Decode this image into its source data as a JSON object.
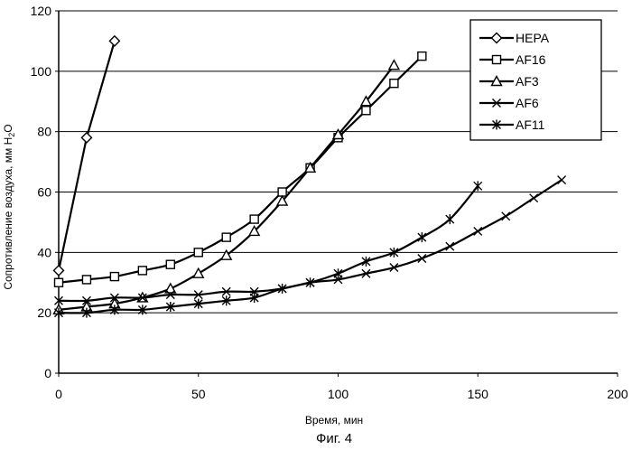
{
  "chart_data": {
    "type": "line",
    "xlabel": "Время, мин",
    "ylabel": "Сопротивление воздуха, мм H",
    "ylabel_sub": "2",
    "ylabel_suffix": "O",
    "xlim": [
      0,
      200
    ],
    "ylim": [
      0,
      120
    ],
    "xticks": [
      0,
      50,
      100,
      150,
      200
    ],
    "yticks": [
      0,
      20,
      40,
      60,
      80,
      100,
      120
    ],
    "grid": "horizontal",
    "legend_position": "top-right",
    "series": [
      {
        "name": "HEPA",
        "marker": "diamond",
        "x": [
          0,
          10,
          20
        ],
        "y": [
          34,
          78,
          110
        ]
      },
      {
        "name": "AF16",
        "marker": "square",
        "x": [
          0,
          10,
          20,
          30,
          40,
          50,
          60,
          70,
          80,
          90,
          100,
          110,
          120,
          130
        ],
        "y": [
          30,
          31,
          32,
          34,
          36,
          40,
          45,
          51,
          60,
          68,
          78,
          87,
          96,
          105
        ]
      },
      {
        "name": "AF3",
        "marker": "triangle",
        "x": [
          0,
          10,
          20,
          30,
          40,
          50,
          60,
          70,
          80,
          90,
          100,
          110,
          120
        ],
        "y": [
          21,
          22,
          23,
          25,
          28,
          33,
          39,
          47,
          57,
          68,
          79,
          90,
          102
        ]
      },
      {
        "name": "AF6",
        "marker": "x",
        "x": [
          0,
          10,
          20,
          30,
          40,
          50,
          60,
          70,
          80,
          90,
          100,
          110,
          120,
          130,
          140,
          150,
          160,
          170,
          180
        ],
        "y": [
          24,
          24,
          25,
          25,
          26,
          26,
          27,
          27,
          28,
          30,
          31,
          33,
          35,
          38,
          42,
          47,
          52,
          58,
          64
        ]
      },
      {
        "name": "AF11",
        "marker": "asterisk",
        "x": [
          0,
          10,
          20,
          30,
          40,
          50,
          60,
          70,
          80,
          90,
          100,
          110,
          120,
          130,
          140,
          150
        ],
        "y": [
          20,
          20,
          21,
          21,
          22,
          23,
          24,
          25,
          28,
          30,
          33,
          37,
          40,
          45,
          51,
          62
        ]
      }
    ]
  },
  "caption": "Фиг. 4"
}
